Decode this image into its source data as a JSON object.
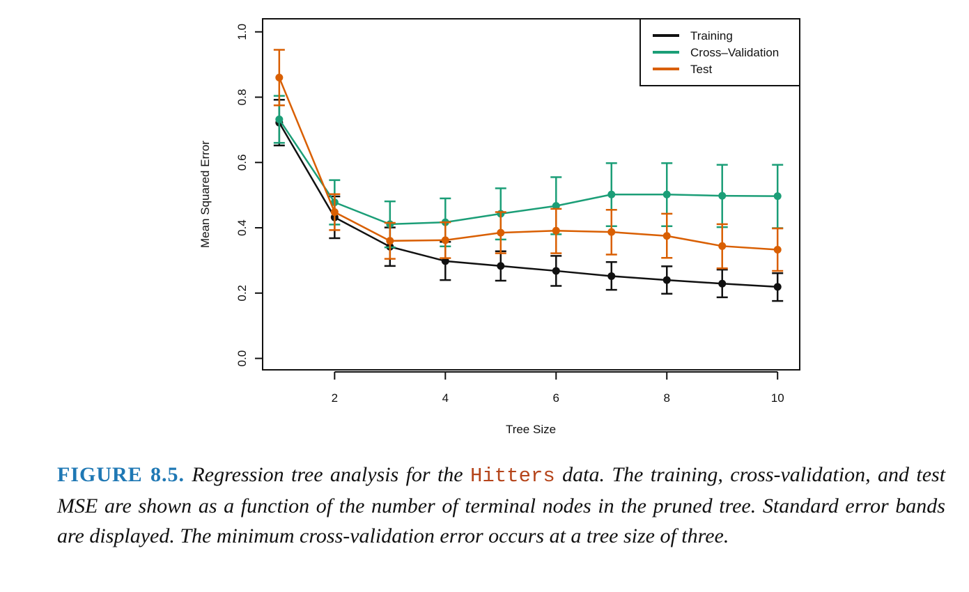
{
  "chart_data": {
    "type": "line",
    "xlabel": "Tree Size",
    "ylabel": "Mean Squared Error",
    "xlim": [
      0.7,
      10.4
    ],
    "ylim": [
      -0.035,
      1.04
    ],
    "xticks": [
      "2",
      "4",
      "6",
      "8",
      "10"
    ],
    "yticks": [
      "0.0",
      "0.2",
      "0.4",
      "0.6",
      "0.8",
      "1.0"
    ],
    "x": [
      1,
      2,
      3,
      4,
      5,
      6,
      7,
      8,
      9,
      10
    ],
    "legend_position": "top-right",
    "error_bars": true,
    "series": [
      {
        "name": "Training",
        "color": "#111111",
        "values": [
          0.722,
          0.432,
          0.342,
          0.298,
          0.283,
          0.268,
          0.252,
          0.24,
          0.229,
          0.219
        ],
        "lower": [
          0.652,
          0.368,
          0.283,
          0.24,
          0.238,
          0.222,
          0.21,
          0.198,
          0.187,
          0.176
        ],
        "upper": [
          0.792,
          0.496,
          0.401,
          0.357,
          0.328,
          0.314,
          0.295,
          0.282,
          0.272,
          0.261
        ]
      },
      {
        "name": "Cross–Validation",
        "color": "#1b9e77",
        "values": [
          0.732,
          0.478,
          0.411,
          0.417,
          0.443,
          0.467,
          0.502,
          0.502,
          0.498,
          0.497
        ],
        "lower": [
          0.66,
          0.41,
          0.34,
          0.343,
          0.364,
          0.38,
          0.405,
          0.405,
          0.402,
          0.399
        ],
        "upper": [
          0.804,
          0.546,
          0.481,
          0.49,
          0.521,
          0.555,
          0.598,
          0.598,
          0.593,
          0.593
        ]
      },
      {
        "name": "Test",
        "color": "#d95f02",
        "values": [
          0.86,
          0.448,
          0.36,
          0.362,
          0.385,
          0.391,
          0.387,
          0.375,
          0.344,
          0.333
        ],
        "lower": [
          0.775,
          0.393,
          0.305,
          0.307,
          0.322,
          0.322,
          0.318,
          0.308,
          0.276,
          0.268
        ],
        "upper": [
          0.945,
          0.503,
          0.415,
          0.417,
          0.448,
          0.458,
          0.455,
          0.443,
          0.411,
          0.398
        ]
      }
    ]
  },
  "caption": {
    "label": "FIGURE 8.5.",
    "text_before": "Regression tree analysis for the",
    "dataset": "Hitters",
    "text_after": "data. The training, cross-validation, and test MSE are shown as a function of the number of terminal nodes in the pruned tree. Standard error bands are displayed. The minimum cross-validation error occurs at a tree size of three."
  }
}
